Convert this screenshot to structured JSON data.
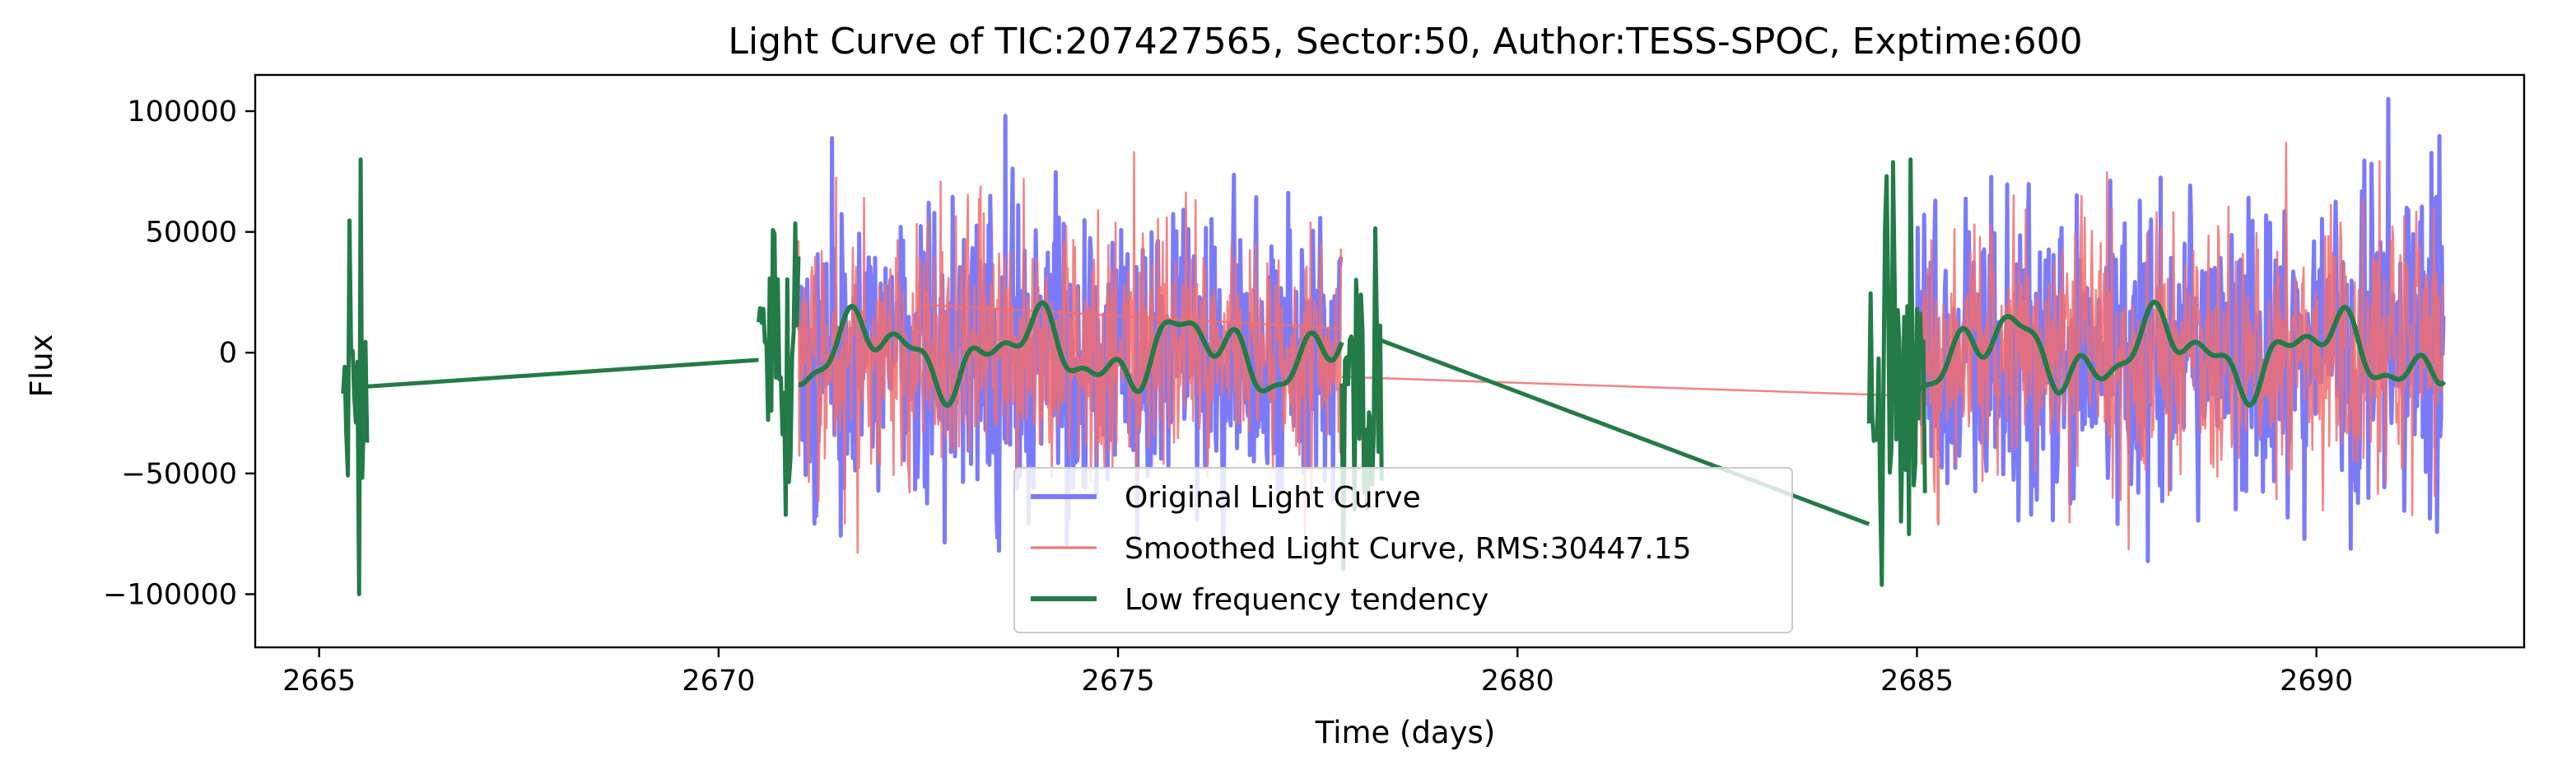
{
  "chart_data": {
    "type": "line",
    "title": "Light Curve of TIC:207427565, Sector:50, Author:TESS-SPOC, Exptime:600",
    "xlabel": "Time (days)",
    "ylabel": "Flux",
    "xlim": [
      2664.2,
      2692.6
    ],
    "ylim": [
      -122000,
      115000
    ],
    "xticks": [
      2665,
      2670,
      2675,
      2680,
      2685,
      2690
    ],
    "yticks": [
      -100000,
      -50000,
      0,
      50000,
      100000
    ],
    "xtick_labels": [
      "2665",
      "2670",
      "2675",
      "2680",
      "2685",
      "2690"
    ],
    "ytick_labels": [
      "−100000",
      "−50000",
      "0",
      "50000",
      "100000"
    ],
    "grid": false,
    "legend_position": "lower-center",
    "segments": [
      {
        "x_start": 2665.3,
        "x_end": 2665.6
      },
      {
        "x_start": 2670.5,
        "x_end": 2678.3
      },
      {
        "x_start": 2684.4,
        "x_end": 2691.6
      }
    ],
    "series": [
      {
        "name": "Original Light Curve",
        "color": "#7b7bfa",
        "noise_sigma": 30000,
        "amplitude_range": [
          -110000,
          105000
        ],
        "segments_used": [
          [
            2671.0,
            2677.8
          ],
          [
            2685.0,
            2691.6
          ]
        ]
      },
      {
        "name": "Smoothed Light Curve, RMS:30447.15",
        "color": "#f26d6d",
        "noise_sigma": 26000,
        "amplitude_range": [
          -95000,
          92000
        ],
        "segments_used": [
          [
            2671.0,
            2677.8
          ],
          [
            2685.0,
            2691.6
          ]
        ],
        "gap_connectors": [
          {
            "x": [
              2672.5,
              2677.8
            ],
            "y": [
              20000,
              10000
            ]
          },
          {
            "x": [
              2677.8,
              2685.0
            ],
            "y": [
              -10000,
              -18000
            ]
          }
        ]
      },
      {
        "name": "Low frequency tendency",
        "color": "#237b47",
        "sample_points": {
          "x": [
            2665.3,
            2665.45,
            2665.6,
            2670.5,
            2671.0,
            2673.0,
            2675.0,
            2677.0,
            2677.8,
            2678.3,
            2684.4,
            2685.0,
            2687.0,
            2689.0,
            2691.6
          ],
          "y": [
            -14000,
            30000,
            -14000,
            -3000,
            10000,
            -15000,
            10000,
            -5000,
            15000,
            5000,
            -71000,
            0,
            10000,
            5000,
            -5000
          ]
        },
        "gap_connectors": [
          {
            "x": [
              2665.6,
              2670.5
            ],
            "y": [
              -14000,
              -3000
            ]
          },
          {
            "x": [
              2678.3,
              2684.4
            ],
            "y": [
              5000,
              -71000
            ]
          }
        ]
      }
    ]
  }
}
